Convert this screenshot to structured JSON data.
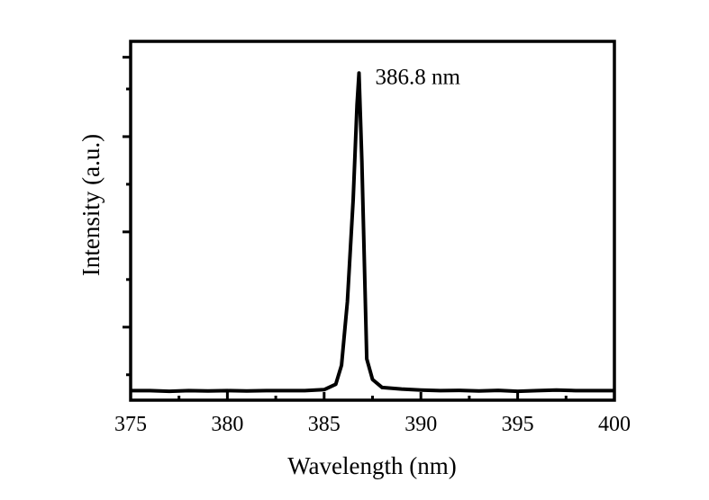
{
  "chart_data": {
    "type": "line",
    "xlabel": "Wavelength (nm)",
    "ylabel": "Intensity (a.u.)",
    "xlim": [
      375,
      400
    ],
    "ylim": [
      -0.03,
      1.1
    ],
    "x_ticks": [
      375,
      380,
      385,
      390,
      395,
      400
    ],
    "x_tick_labels": [
      "375",
      "380",
      "385",
      "390",
      "395",
      "400"
    ],
    "y_tick_labels_shown": false,
    "grid": false,
    "legend": "none",
    "line_color": "#000000",
    "annotations": [
      {
        "text": "386.8 nm",
        "x": 386.8,
        "y": 1.0
      }
    ],
    "series": [
      {
        "x": [
          375,
          376,
          377,
          378,
          379,
          380,
          381,
          382,
          383,
          384,
          385,
          385.6,
          385.9,
          386.2,
          386.5,
          386.7,
          386.8,
          386.95,
          387.2,
          387.5,
          388,
          389,
          390,
          391,
          392,
          393,
          394,
          395,
          396,
          397,
          398,
          399,
          400
        ],
        "y": [
          0.0,
          0.0,
          -0.002,
          0.0,
          -0.001,
          0.0,
          -0.001,
          0.0,
          0.0,
          0.0,
          0.003,
          0.02,
          0.08,
          0.28,
          0.6,
          0.9,
          1.0,
          0.72,
          0.1,
          0.035,
          0.01,
          0.005,
          0.002,
          0.0,
          0.001,
          -0.001,
          0.001,
          -0.002,
          0.0,
          0.002,
          0.0,
          0.0,
          0.0
        ]
      }
    ]
  }
}
